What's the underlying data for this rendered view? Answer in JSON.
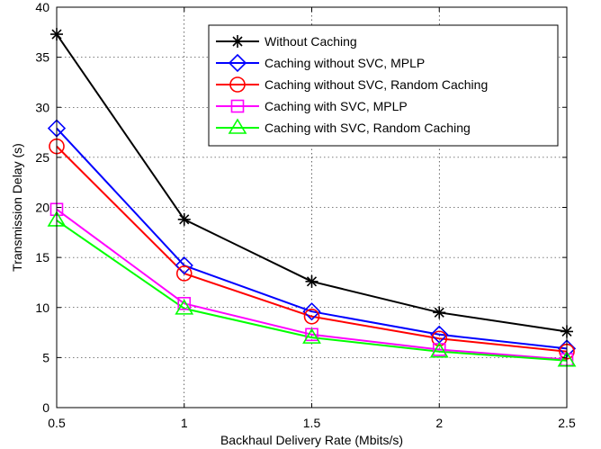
{
  "chart_data": {
    "type": "line",
    "title": "",
    "xlabel": "Backhaul Delivery Rate (Mbits/s)",
    "ylabel": "Transmission Delay (s)",
    "xlim": [
      0.5,
      2.5
    ],
    "ylim": [
      0,
      40
    ],
    "xticks": [
      "0.5",
      "1",
      "1.5",
      "2",
      "2.5"
    ],
    "yticks": [
      "0",
      "5",
      "10",
      "15",
      "20",
      "25",
      "30",
      "35",
      "40"
    ],
    "grid": true,
    "legend_position": "top-right",
    "x": [
      0.5,
      1,
      1.5,
      2,
      2.5
    ],
    "series": [
      {
        "name": "Without Caching",
        "color": "#000000",
        "marker": "asterisk",
        "values": [
          37.3,
          18.8,
          12.6,
          9.5,
          7.6
        ]
      },
      {
        "name": "Caching without SVC, MPLP",
        "color": "#0000ff",
        "marker": "diamond",
        "values": [
          27.9,
          14.2,
          9.6,
          7.3,
          5.9
        ]
      },
      {
        "name": "Caching without SVC, Random Caching",
        "color": "#ff0000",
        "marker": "circle",
        "values": [
          26.1,
          13.4,
          9.1,
          6.9,
          5.6
        ]
      },
      {
        "name": "Caching with SVC, MPLP",
        "color": "#ff00ff",
        "marker": "square",
        "values": [
          19.8,
          10.4,
          7.3,
          5.8,
          4.8
        ]
      },
      {
        "name": "Caching with SVC, Random Caching",
        "color": "#00ff00",
        "marker": "triangle",
        "values": [
          18.7,
          9.9,
          7.0,
          5.6,
          4.7
        ]
      }
    ]
  }
}
